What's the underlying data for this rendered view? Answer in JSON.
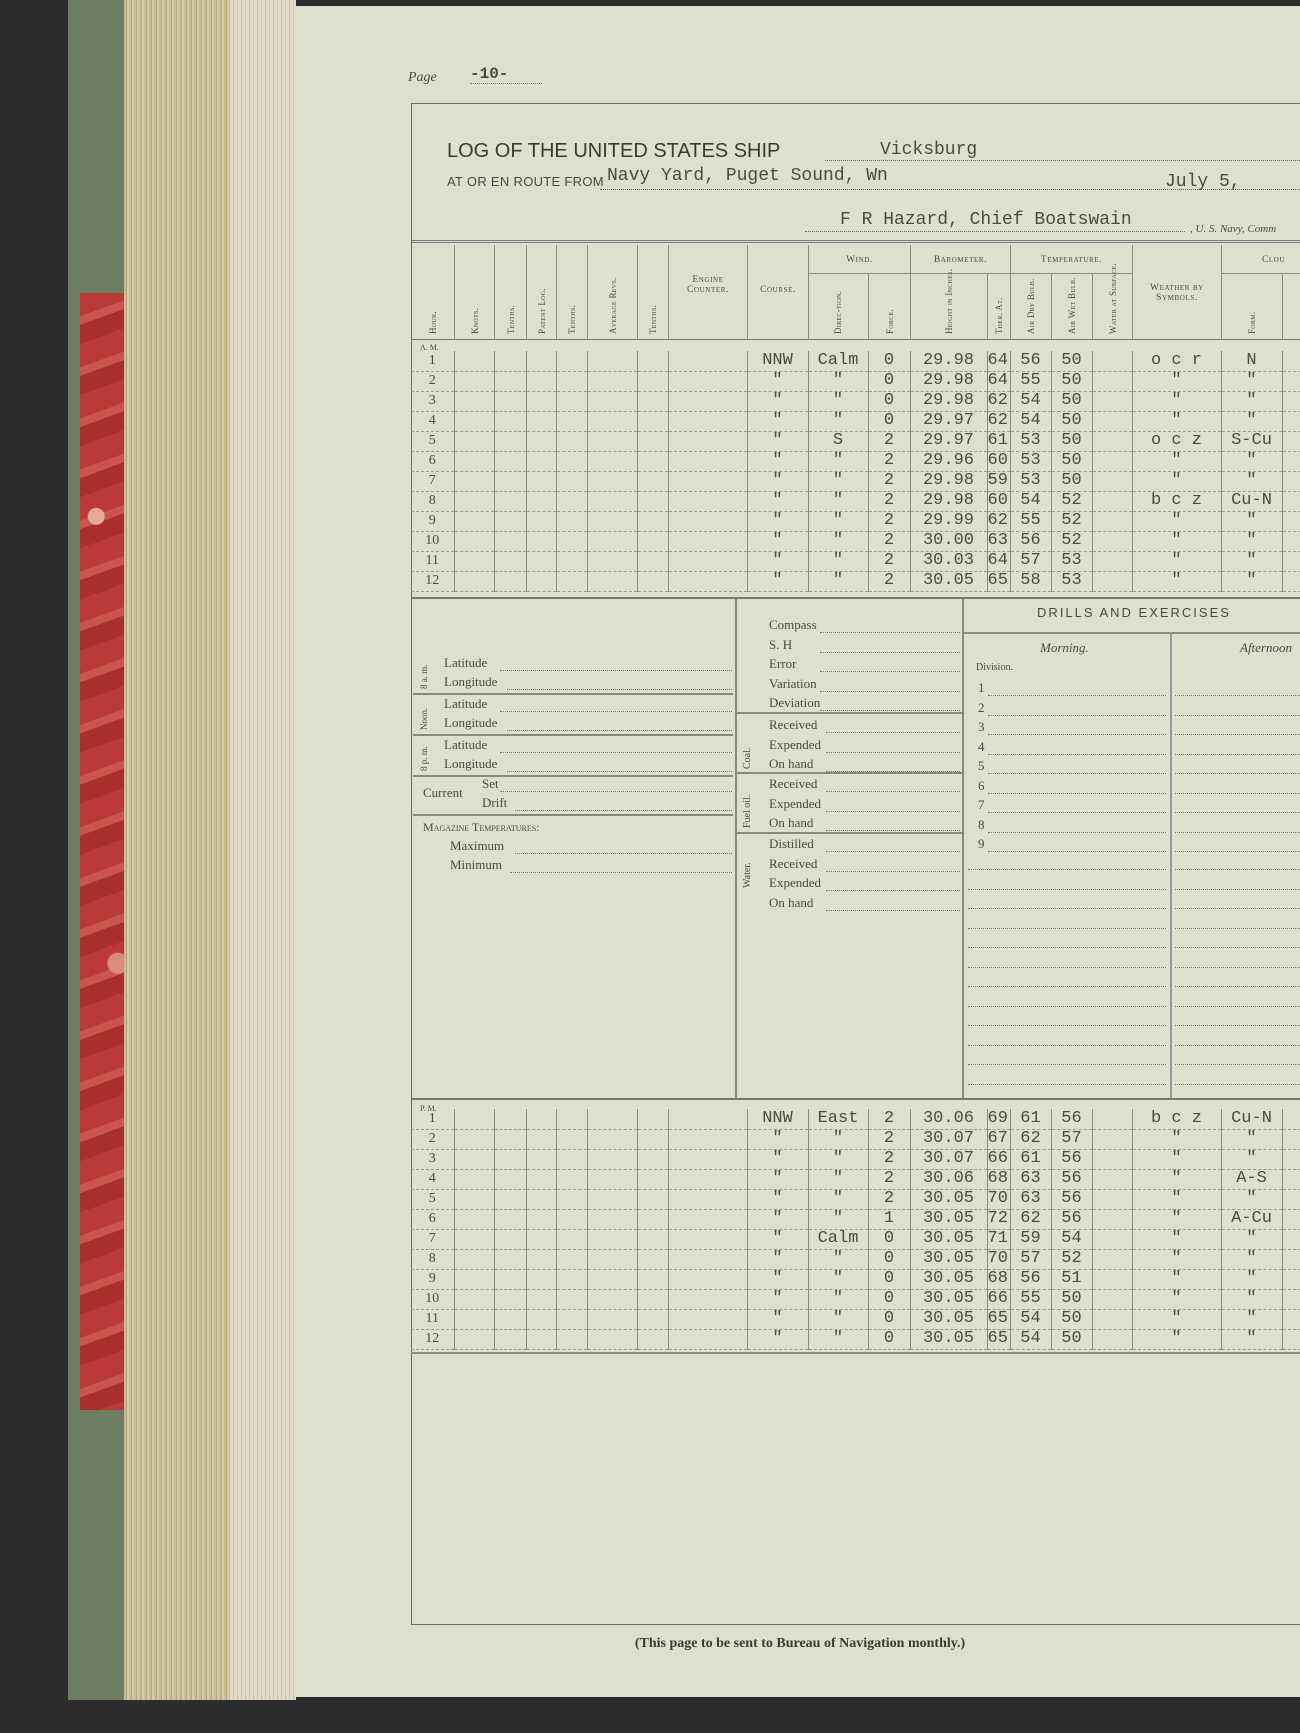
{
  "page": {
    "label": "Page",
    "number": "-10-"
  },
  "header": {
    "title": "LOG OF THE UNITED STATES SHIP",
    "ship": "Vicksburg",
    "route_label": "At or en route from",
    "route": "Navy Yard, Puget Sound, Wn",
    "date": "July 5,",
    "officer": "F R Hazard, Chief Boatswain",
    "officer_suffix": ", U. S. Navy, Comm"
  },
  "columns": {
    "hour": "Hour.",
    "knots": "Knots.",
    "tenths": "Tenths.",
    "patent_log": "Patent Log.",
    "avg_revs": "Average Revs.",
    "engine_counter": "Engine Counter.",
    "course": "Course.",
    "wind": "Wind.",
    "direction": "Direc-tion.",
    "force": "Force.",
    "barometer": "Barometer.",
    "height": "Height in Inches.",
    "ther": "Ther. At.",
    "temperature": "Temperature.",
    "dry": "Air Dry Bulb.",
    "wet": "Air Wet Bulb.",
    "water": "Water at Surface.",
    "weather": "Weather by Symbols.",
    "clouds": "Clou",
    "form": "Form."
  },
  "am": {
    "label": "A. M.",
    "rows": [
      [
        "1",
        "NNW",
        "Calm",
        "0",
        "29.98",
        "64",
        "56",
        "50",
        "o c r",
        "N"
      ],
      [
        "2",
        "\"",
        "\"",
        "0",
        "29.98",
        "64",
        "55",
        "50",
        "\"",
        "\""
      ],
      [
        "3",
        "\"",
        "\"",
        "0",
        "29.98",
        "62",
        "54",
        "50",
        "\"",
        "\""
      ],
      [
        "4",
        "\"",
        "\"",
        "0",
        "29.97",
        "62",
        "54",
        "50",
        "\"",
        "\""
      ],
      [
        "5",
        "\"",
        "S",
        "2",
        "29.97",
        "61",
        "53",
        "50",
        "o c z",
        "S-Cu"
      ],
      [
        "6",
        "\"",
        "\"",
        "2",
        "29.96",
        "60",
        "53",
        "50",
        "\"",
        "\""
      ],
      [
        "7",
        "\"",
        "\"",
        "2",
        "29.98",
        "59",
        "53",
        "50",
        "\"",
        "\""
      ],
      [
        "8",
        "\"",
        "\"",
        "2",
        "29.98",
        "60",
        "54",
        "52",
        "b c z",
        "Cu-N"
      ],
      [
        "9",
        "\"",
        "\"",
        "2",
        "29.99",
        "62",
        "55",
        "52",
        "\"",
        "\""
      ],
      [
        "10",
        "\"",
        "\"",
        "2",
        "30.00",
        "63",
        "56",
        "52",
        "\"",
        "\""
      ],
      [
        "11",
        "\"",
        "\"",
        "2",
        "30.03",
        "64",
        "57",
        "53",
        "\"",
        "\""
      ],
      [
        "12",
        "\"",
        "\"",
        "2",
        "30.05",
        "65",
        "58",
        "53",
        "\"",
        "\""
      ]
    ]
  },
  "pm": {
    "label": "P. M.",
    "rows": [
      [
        "1",
        "NNW",
        "East",
        "2",
        "30.06",
        "69",
        "61",
        "56",
        "b c z",
        "Cu-N"
      ],
      [
        "2",
        "\"",
        "\"",
        "2",
        "30.07",
        "67",
        "62",
        "57",
        "\"",
        "\""
      ],
      [
        "3",
        "\"",
        "\"",
        "2",
        "30.07",
        "66",
        "61",
        "56",
        "\"",
        "\""
      ],
      [
        "4",
        "\"",
        "\"",
        "2",
        "30.06",
        "68",
        "63",
        "56",
        "\"",
        "A-S"
      ],
      [
        "5",
        "\"",
        "\"",
        "2",
        "30.05",
        "70",
        "63",
        "56",
        "\"",
        "\""
      ],
      [
        "6",
        "\"",
        "\"",
        "1",
        "30.05",
        "72",
        "62",
        "56",
        "\"",
        "A-Cu"
      ],
      [
        "7",
        "\"",
        "Calm",
        "0",
        "30.05",
        "71",
        "59",
        "54",
        "\"",
        "\""
      ],
      [
        "8",
        "\"",
        "\"",
        "0",
        "30.05",
        "70",
        "57",
        "52",
        "\"",
        "\""
      ],
      [
        "9",
        "\"",
        "\"",
        "0",
        "30.05",
        "68",
        "56",
        "51",
        "\"",
        "\""
      ],
      [
        "10",
        "\"",
        "\"",
        "0",
        "30.05",
        "66",
        "55",
        "50",
        "\"",
        "\""
      ],
      [
        "11",
        "\"",
        "\"",
        "0",
        "30.05",
        "65",
        "54",
        "50",
        "\"",
        "\""
      ],
      [
        "12",
        "\"",
        "\"",
        "0",
        "30.05",
        "65",
        "54",
        "50",
        "\"",
        "\""
      ]
    ]
  },
  "position": {
    "sam": "8 a. m.",
    "noon": "Noon.",
    "spm": "8 p. m.",
    "latitude": "Latitude",
    "longitude": "Longitude",
    "current": "Current",
    "set": "Set",
    "drift": "Drift",
    "magazine": "Magazine Temperatures:",
    "maximum": "Maximum",
    "minimum": "Minimum"
  },
  "compass": {
    "items": [
      "Compass",
      "S. H",
      "Error",
      "Variation",
      "Deviation"
    ]
  },
  "coal": {
    "label": "Coal.",
    "items": [
      "Received",
      "Expended",
      "On hand"
    ]
  },
  "fuel_oil": {
    "label": "Fuel oil.",
    "items": [
      "Received",
      "Expended",
      "On hand"
    ]
  },
  "water": {
    "label": "Water.",
    "items": [
      "Distilled",
      "Received",
      "Expended",
      "On hand"
    ]
  },
  "drills": {
    "title": "DRILLS AND EXERCISES",
    "morning": "Morning.",
    "afternoon": "Afternoon",
    "division": "Division.",
    "divisions": [
      "1",
      "2",
      "3",
      "4",
      "5",
      "6",
      "7",
      "8",
      "9"
    ]
  },
  "footer": "(This page to be sent to Bureau of Navigation monthly.)"
}
